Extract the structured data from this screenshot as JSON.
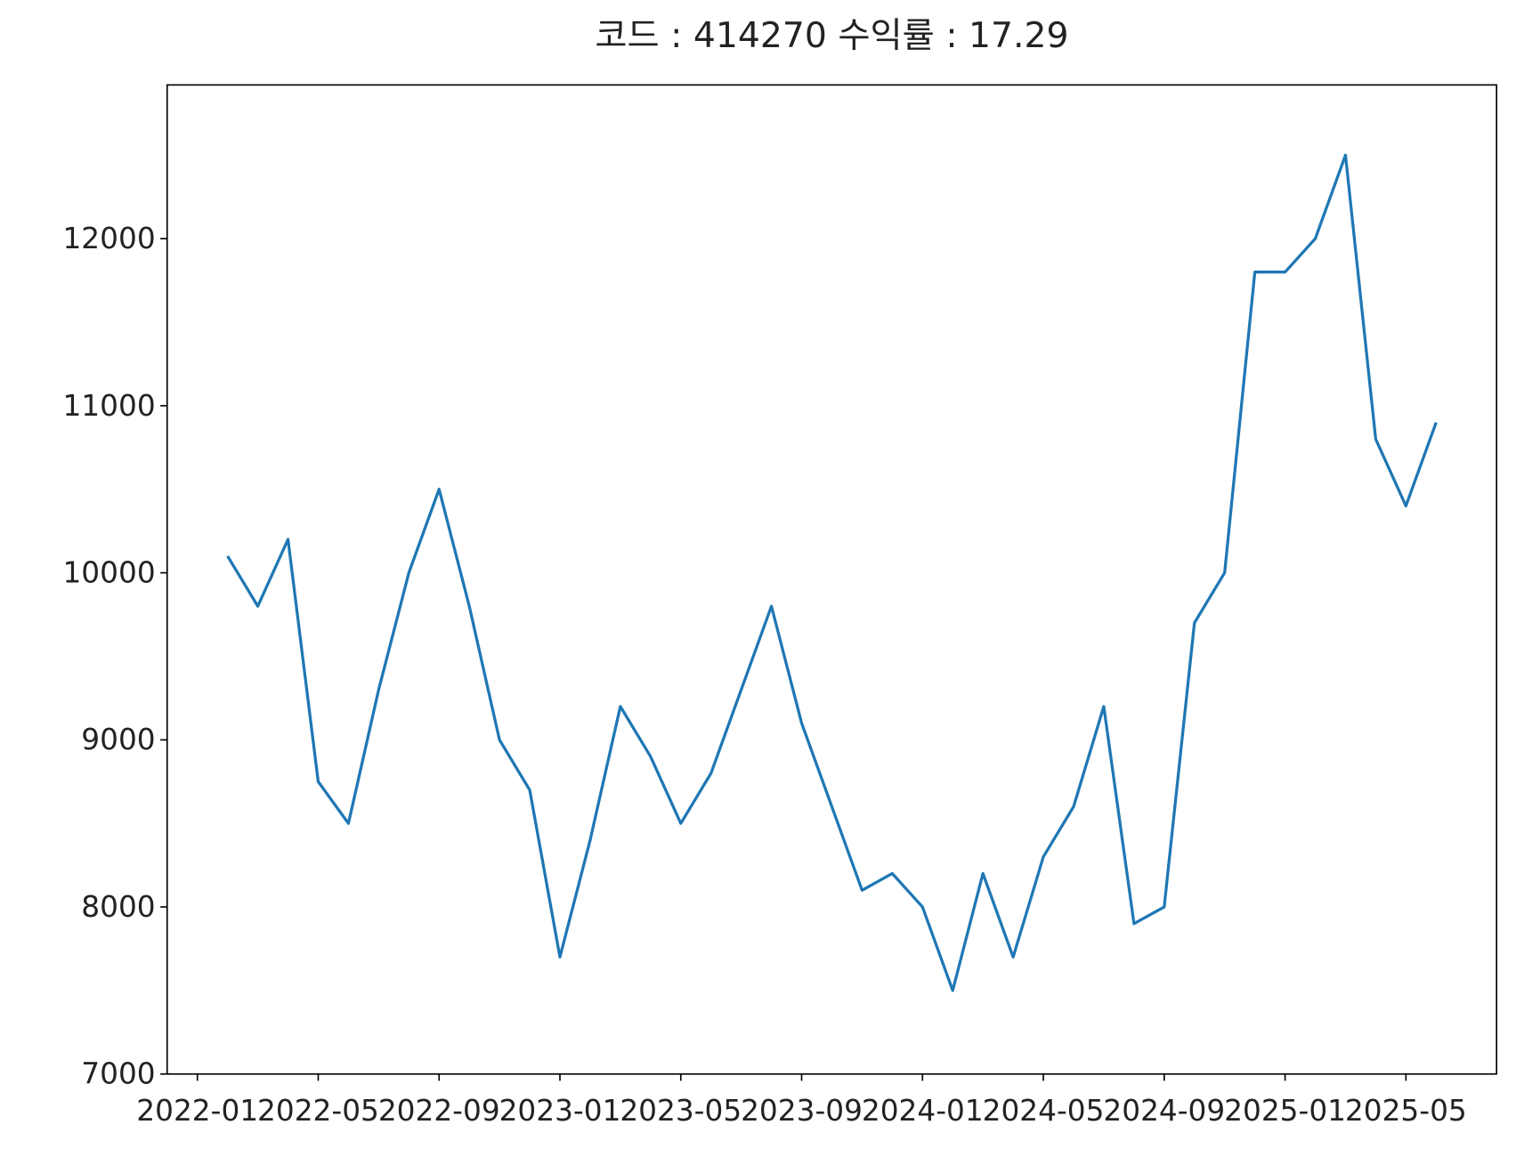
{
  "chart_data": {
    "type": "line",
    "title": "코드 : 414270 수익률 : 17.29",
    "x": [
      "2022-02",
      "2022-03",
      "2022-04",
      "2022-05",
      "2022-06",
      "2022-07",
      "2022-08",
      "2022-09",
      "2022-10",
      "2022-11",
      "2022-12",
      "2023-01",
      "2023-02",
      "2023-03",
      "2023-04",
      "2023-05",
      "2023-06",
      "2023-07",
      "2023-08",
      "2023-09",
      "2023-10",
      "2023-11",
      "2023-12",
      "2024-01",
      "2024-02",
      "2024-03",
      "2024-04",
      "2024-05",
      "2024-06",
      "2024-07",
      "2024-08",
      "2024-09",
      "2024-10",
      "2024-11",
      "2024-12",
      "2025-01",
      "2025-02",
      "2025-03",
      "2025-04",
      "2025-05",
      "2025-06"
    ],
    "values": [
      10100,
      9800,
      10200,
      8750,
      8500,
      9300,
      10000,
      10500,
      9800,
      9000,
      8700,
      7700,
      8400,
      9200,
      8900,
      8500,
      8800,
      9300,
      9800,
      9100,
      8600,
      8100,
      8200,
      8000,
      7500,
      8200,
      7700,
      8300,
      8600,
      9200,
      7900,
      8000,
      9700,
      10000,
      11800,
      11800,
      12000,
      12500,
      10800,
      10400,
      10900
    ],
    "color": "#1f77b4",
    "xlim": [
      "2021-12",
      "2025-08"
    ],
    "xticks": [
      "2022-01",
      "2022-05",
      "2022-09",
      "2023-01",
      "2023-05",
      "2023-09",
      "2024-01",
      "2024-05",
      "2024-09",
      "2025-01",
      "2025-05"
    ],
    "ylim": [
      7000,
      12920
    ],
    "yticks": [
      7000,
      8000,
      9000,
      10000,
      11000,
      12000
    ]
  }
}
